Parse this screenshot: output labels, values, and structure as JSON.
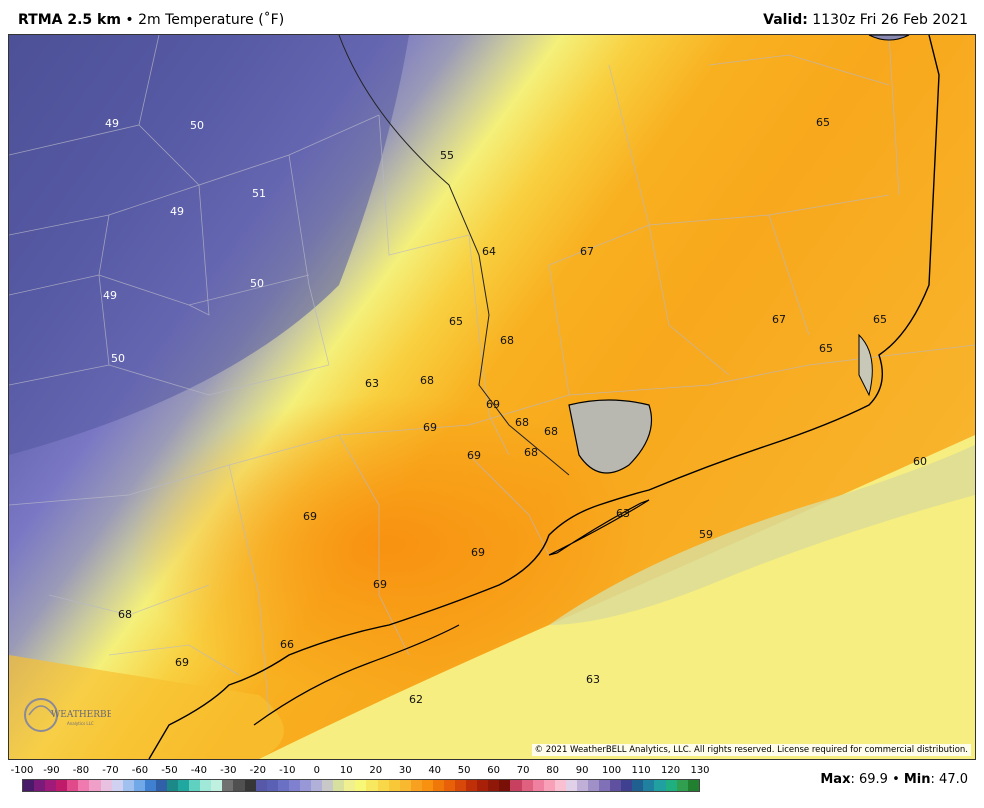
{
  "header": {
    "product": "RTMA 2.5 km",
    "separator": " • ",
    "field": "2m Temperature (˚F)",
    "valid_label": "Valid:",
    "valid_time": " 1130z Fri 26 Feb 2021"
  },
  "map": {
    "copyright": "© 2021 WeatherBELL Analytics, LLC. All rights reserved. License required for commercial distribution.",
    "logo_text": "WEATHERBELL",
    "logo_subtext": "Analytics LLC",
    "station_values": [
      "49",
      "50",
      "55",
      "51",
      "49",
      "50",
      "49",
      "50",
      "64",
      "67",
      "65",
      "65",
      "68",
      "67",
      "65",
      "65",
      "63",
      "68",
      "69",
      "69",
      "68",
      "68",
      "69",
      "68",
      "60",
      "69",
      "63",
      "59",
      "69",
      "69",
      "68",
      "66",
      "69",
      "63",
      "62"
    ]
  },
  "legend": {
    "ticks": [
      "-100",
      "-90",
      "-80",
      "-70",
      "-60",
      "-50",
      "-40",
      "-30",
      "-20",
      "-10",
      "0",
      "10",
      "20",
      "30",
      "40",
      "50",
      "60",
      "70",
      "80",
      "90",
      "100",
      "110",
      "120",
      "130"
    ],
    "colors": [
      "#4a1a6a",
      "#7a1a7a",
      "#a01a7a",
      "#c01a6a",
      "#e04a8a",
      "#f07ab0",
      "#f0a0c8",
      "#e8c0e0",
      "#d0d0f0",
      "#a0c0f0",
      "#70a8e8",
      "#4080d0",
      "#3060a8",
      "#1c8888",
      "#20a8a0",
      "#60d0c0",
      "#a0e8d8",
      "#c0f0e0",
      "#707070",
      "#505050",
      "#363636",
      "#5858a8",
      "#5a60b4",
      "#6a70c4",
      "#8080d0",
      "#9898d8",
      "#b0b0d8",
      "#c8c8c8",
      "#d8e0a0",
      "#f0f090",
      "#f8f878",
      "#f8e860",
      "#f8d848",
      "#f8c838",
      "#f8b830",
      "#f8a020",
      "#f89010",
      "#f07808",
      "#e86008",
      "#d84808",
      "#c03008",
      "#a82008",
      "#901808",
      "#781008",
      "#c84060",
      "#e06080",
      "#f080a0",
      "#f8a0b8",
      "#f8c0d0",
      "#e0d0e8",
      "#c0b0d8",
      "#a090c8",
      "#8070b8",
      "#6050a0",
      "#404090",
      "#206090",
      "#2080a0",
      "#20a0a0",
      "#20b080",
      "#30a050",
      "#208030"
    ],
    "max_label": "Max",
    "max_value": ": 69.9",
    "sep": " • ",
    "min_label": "Min",
    "min_value": ": 47.0"
  }
}
